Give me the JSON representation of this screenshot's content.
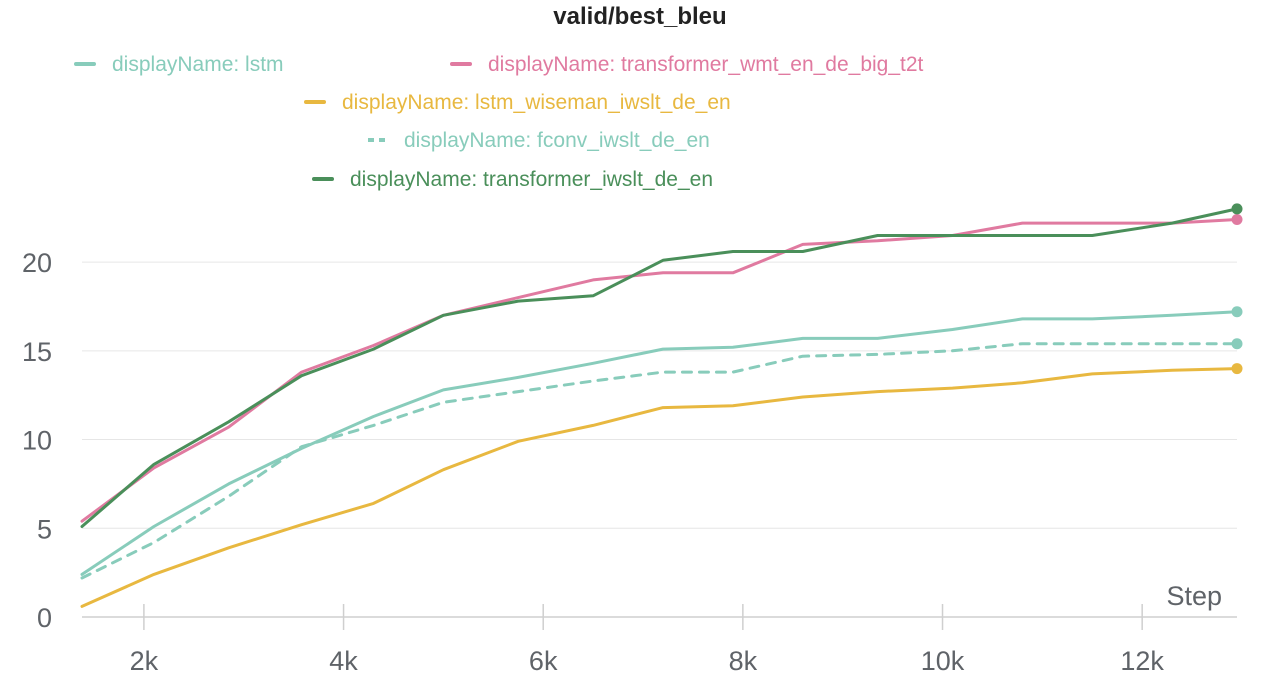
{
  "chart_data": {
    "type": "line",
    "title": "valid/best_bleu",
    "xlabel": "Step",
    "ylabel": "",
    "xlim": [
      1380,
      12950
    ],
    "ylim": [
      0,
      23.5
    ],
    "x_ticks": [
      2000,
      4000,
      6000,
      8000,
      10000,
      12000
    ],
    "x_tick_labels": [
      "2k",
      "4k",
      "6k",
      "8k",
      "10k",
      "12k"
    ],
    "y_ticks": [
      0,
      5,
      10,
      15,
      20
    ],
    "y_tick_labels": [
      "0",
      "5",
      "10",
      "15",
      "20"
    ],
    "grid": true,
    "legend_position": "top",
    "series": [
      {
        "name": "displayName: lstm",
        "color": "#88ccbb",
        "dash": "solid",
        "x": [
          1380,
          2100,
          2850,
          3580,
          4300,
          5000,
          5750,
          6500,
          7200,
          7900,
          8600,
          9350,
          10100,
          10800,
          11500,
          12300,
          12950
        ],
        "y": [
          2.4,
          5.1,
          7.5,
          9.5,
          11.3,
          12.8,
          13.5,
          14.3,
          15.1,
          15.2,
          15.7,
          15.7,
          16.2,
          16.8,
          16.8,
          17.0,
          17.2
        ]
      },
      {
        "name": "displayName: transformer_wmt_en_de_big_t2t",
        "color": "#e07aa0",
        "dash": "solid",
        "x": [
          1380,
          2100,
          2850,
          3580,
          4300,
          5000,
          5750,
          6500,
          7200,
          7900,
          8600,
          9350,
          10100,
          10800,
          11500,
          12300,
          12950
        ],
        "y": [
          5.4,
          8.4,
          10.7,
          13.8,
          15.3,
          17.0,
          18.0,
          19.0,
          19.4,
          19.4,
          21.0,
          21.2,
          21.5,
          22.2,
          22.2,
          22.2,
          22.4
        ]
      },
      {
        "name": "displayName: lstm_wiseman_iwslt_de_en",
        "color": "#e8b840",
        "dash": "solid",
        "x": [
          1380,
          2100,
          2850,
          3580,
          4300,
          5000,
          5750,
          6500,
          7200,
          7900,
          8600,
          9350,
          10100,
          10800,
          11500,
          12300,
          12950
        ],
        "y": [
          0.6,
          2.4,
          3.9,
          5.2,
          6.4,
          8.3,
          9.9,
          10.8,
          11.8,
          11.9,
          12.4,
          12.7,
          12.9,
          13.2,
          13.7,
          13.9,
          14.0
        ]
      },
      {
        "name": "displayName: fconv_iwslt_de_en",
        "color": "#88ccbb",
        "dash": "dashed",
        "x": [
          1380,
          2100,
          2850,
          3580,
          4300,
          5000,
          5750,
          6500,
          7200,
          7900,
          8600,
          9350,
          10100,
          10800,
          11500,
          12300,
          12950
        ],
        "y": [
          2.2,
          4.2,
          6.8,
          9.6,
          10.8,
          12.1,
          12.7,
          13.3,
          13.8,
          13.8,
          14.7,
          14.8,
          15.0,
          15.4,
          15.4,
          15.4,
          15.4
        ]
      },
      {
        "name": "displayName: transformer_iwslt_de_en",
        "color": "#4a8f5a",
        "dash": "solid",
        "x": [
          1380,
          2100,
          2850,
          3580,
          4300,
          5000,
          5750,
          6500,
          7200,
          7900,
          8600,
          9350,
          10100,
          10800,
          11500,
          12300,
          12950
        ],
        "y": [
          5.1,
          8.6,
          11.0,
          13.6,
          15.1,
          17.0,
          17.8,
          18.1,
          20.1,
          20.6,
          20.6,
          21.5,
          21.5,
          21.5,
          21.5,
          22.2,
          23.0
        ]
      }
    ]
  }
}
